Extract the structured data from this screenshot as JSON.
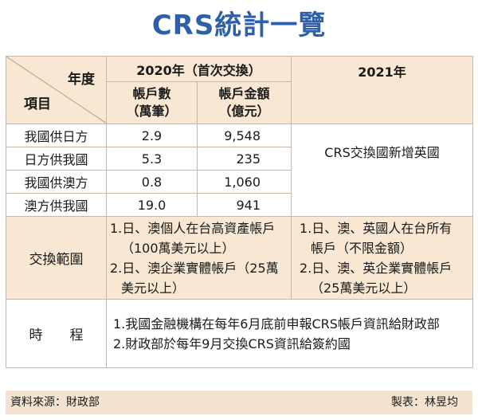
{
  "title": "CRS統計一覽",
  "header": {
    "year_label": "年度",
    "item_label": "項目",
    "year_2020": "2020年（首次交換）",
    "year_2021": "2021年",
    "col_accounts": "帳戶數\n（萬筆）",
    "col_accounts_l1": "帳戶數",
    "col_accounts_l2": "（萬筆）",
    "col_amount_l1": "帳戶金額",
    "col_amount_l2": "（億元）"
  },
  "rows": [
    {
      "label": "我國供日方",
      "accounts": "2.9",
      "amount": "9,548"
    },
    {
      "label": "日方供我國",
      "accounts": "5.3",
      "amount": "235"
    },
    {
      "label": "我國供澳方",
      "accounts": "0.8",
      "amount": "1,060"
    },
    {
      "label": "澳方供我國",
      "accounts": "19.0",
      "amount": "941"
    }
  ],
  "note_2021": "CRS交換國新增英國",
  "scope": {
    "label": "交換範圍",
    "y2020_1": "1.日、澳個人在台高資產帳戶（100萬美元以上）",
    "y2020_2": "2.日、澳企業實體帳戶（25萬美元以上）",
    "y2021_1": "1.日、澳、英國人在台所有帳戶（不限金額）",
    "y2021_2": "2.日、澳、英企業實體帳戶（25萬美元以上）"
  },
  "schedule": {
    "label": "時　　程",
    "item_1": "1.我國金融機構在每年6月底前申報CRS帳戶資訊給財政部",
    "item_2": "2.財政部於每年9月交換CRS資訊給簽約國"
  },
  "footer": {
    "source": "資料來源：財政部",
    "maker": "製表：林昱均"
  }
}
